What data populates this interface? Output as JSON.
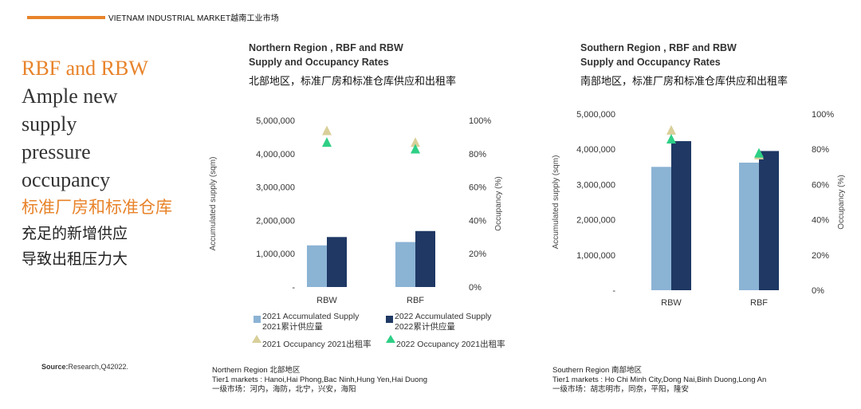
{
  "header": {
    "text": "VIETNAM INDUSTRIAL MARKET越南工业市场",
    "accent": "#e8832a"
  },
  "left": {
    "line1": "RBF and RBW",
    "line2": "Ample new",
    "line3": "supply",
    "line4": "pressure",
    "line5": "occupancy",
    "line6": "标准厂房和标准仓库",
    "line7": "充足的新增供应",
    "line8": "导致出租压力大"
  },
  "source": {
    "label": "Source:",
    "text": "Research,Q42022."
  },
  "legend": {
    "s2021": "2021 Accumulated Supply",
    "s2021_cn": "2021累计供应量",
    "s2022": "2022 Accumulated Supply",
    "s2022_cn": "2022累计供应量",
    "o2021": "2021 Occupancy 2021出租率",
    "o2022": "2022 Occupancy 2021出租率"
  },
  "colors": {
    "supply2021": "#8bb3d4",
    "supply2022": "#1f3864",
    "occ2021": "#d9cf9a",
    "occ2022": "#2ecf86"
  },
  "north": {
    "title1": "Northern Region , RBF and RBW",
    "title2": "Supply and Occupancy Rates",
    "title_cn": "北部地区，标准厂房和标准仓库供应和出租率",
    "foot1": "Northern Region 北部地区",
    "foot2": "Tier1 markets : Hanoi,Hai Phong,Bac Ninh,Hung Yen,Hai Duong",
    "foot3": "一级市场：河内，海防，北宁，兴安，海阳"
  },
  "south": {
    "title1": "Southern Region , RBF and RBW",
    "title2": "Supply and Occupancy Rates",
    "title_cn": "南部地区，标准厂房和标准仓库供应和出租率",
    "foot1": "Southern Region 南部地区",
    "foot2": "Tier1 markets : Ho Chi Minh City,Dong Nai,Binh Duong,Long An",
    "foot3": "一级市场：胡志明市，同奈，平阳，隆安"
  },
  "chart_data": [
    {
      "type": "bar",
      "categories": [
        "RBW",
        "RBF"
      ],
      "series": [
        {
          "name": "2021 Accumulated Supply 2021累计供应量",
          "values": [
            1250000,
            1350000
          ]
        },
        {
          "name": "2022 Accumulated Supply 2022累计供应量",
          "values": [
            1500000,
            1680000
          ]
        }
      ],
      "occupancy": [
        {
          "name": "2021 Occupancy 2021出租率",
          "values": [
            0.94,
            0.87
          ]
        },
        {
          "name": "2022 Occupancy 2021出租率",
          "values": [
            0.87,
            0.83
          ]
        }
      ],
      "ylabel": "Accumulated supply (sqm)",
      "y2label": "Occupancy (%)",
      "ylim": [
        0,
        5000000
      ],
      "y2lim": [
        0,
        1
      ],
      "yticks": [
        "-",
        "1,000,000",
        "2,000,000",
        "3,000,000",
        "4,000,000",
        "5,000,000"
      ],
      "y2ticks": [
        "0%",
        "20%",
        "40%",
        "60%",
        "80%",
        "100%"
      ],
      "grid": false
    },
    {
      "type": "bar",
      "categories": [
        "RBW",
        "RBF"
      ],
      "series": [
        {
          "name": "2021 Accumulated Supply 2021累计供应量",
          "values": [
            3500000,
            3620000
          ]
        },
        {
          "name": "2022 Accumulated Supply 2022累计供应量",
          "values": [
            4230000,
            3950000
          ]
        }
      ],
      "occupancy": [
        {
          "name": "2021 Occupancy 2021出租率",
          "values": [
            0.91,
            0.77
          ]
        },
        {
          "name": "2022 Occupancy 2021出租率",
          "values": [
            0.86,
            0.78
          ]
        }
      ],
      "ylabel": "Accumulated supply (sqm)",
      "y2label": "Occupancy (%)",
      "ylim": [
        0,
        5000000
      ],
      "y2lim": [
        0,
        1
      ],
      "yticks": [
        "-",
        "1,000,000",
        "2,000,000",
        "3,000,000",
        "4,000,000",
        "5,000,000"
      ],
      "y2ticks": [
        "0%",
        "20%",
        "40%",
        "60%",
        "80%",
        "100%"
      ],
      "grid": false
    }
  ]
}
